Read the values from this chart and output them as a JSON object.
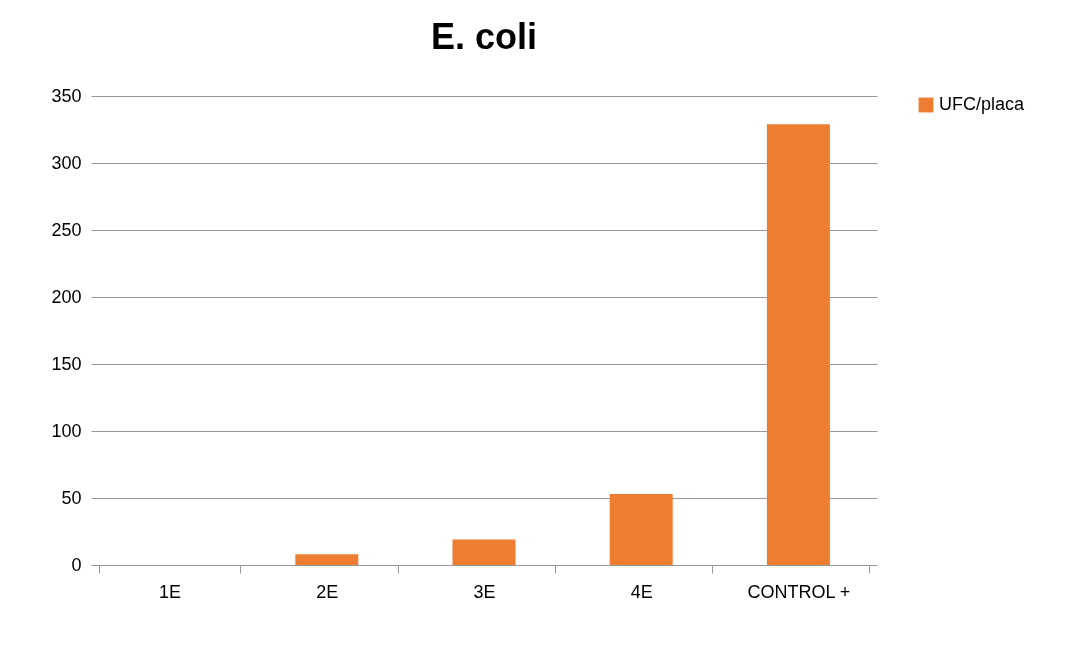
{
  "chart_data": {
    "type": "bar",
    "title": "E. coli",
    "categories": [
      "1E",
      "2E",
      "3E",
      "4E",
      "CONTROL +"
    ],
    "series": [
      {
        "name": "UFC/placa",
        "color": "#ed7d31",
        "values": [
          0,
          8,
          19,
          53,
          329
        ]
      }
    ],
    "ylim": [
      0,
      350
    ],
    "yticks": [
      0,
      50,
      100,
      150,
      200,
      250,
      300,
      350
    ],
    "grid": "y",
    "legend": "right"
  }
}
